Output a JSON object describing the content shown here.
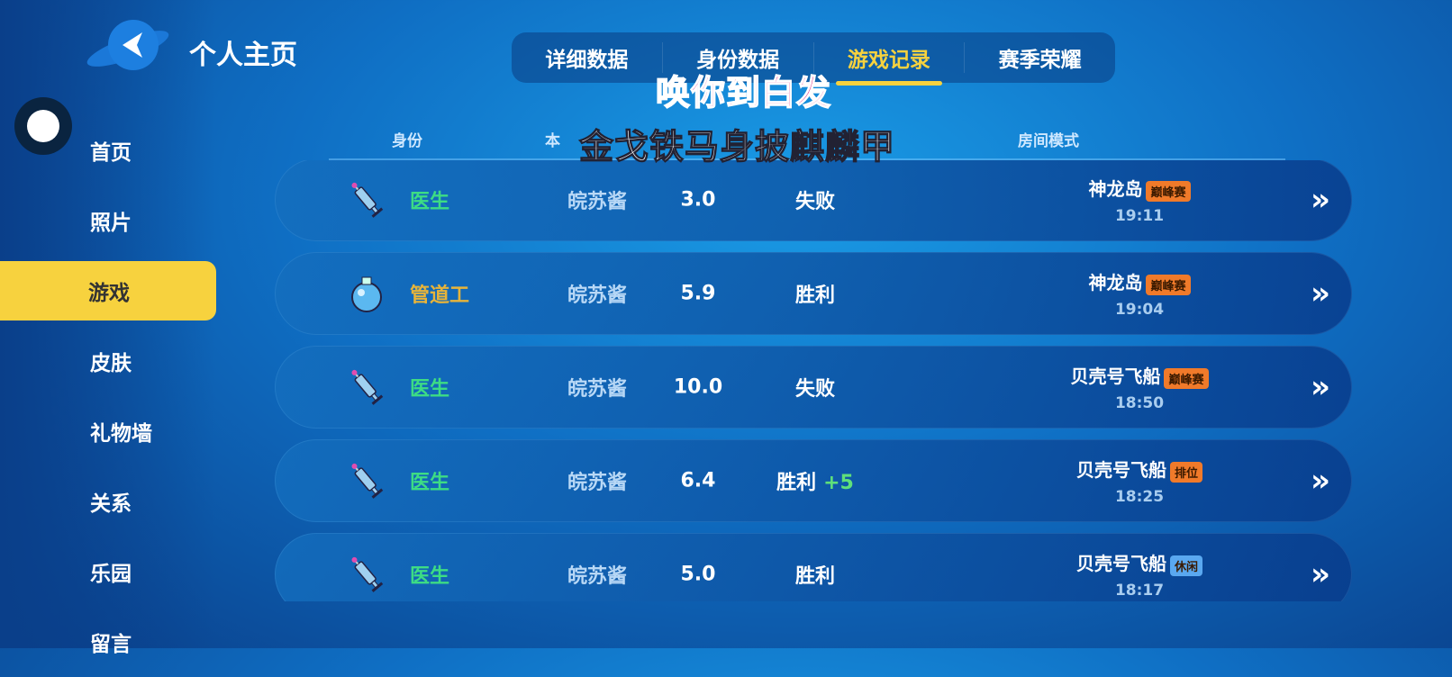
{
  "header": {
    "title": "个人主页",
    "back_icon": "planet-back-icon"
  },
  "sidebar": {
    "items": [
      {
        "label": "首页"
      },
      {
        "label": "照片"
      },
      {
        "label": "游戏",
        "active": true
      },
      {
        "label": "皮肤"
      },
      {
        "label": "礼物墙"
      },
      {
        "label": "关系"
      },
      {
        "label": "乐园"
      },
      {
        "label": "留言"
      }
    ]
  },
  "tabs": [
    {
      "label": "详细数据"
    },
    {
      "label": "身份数据"
    },
    {
      "label": "游戏记录",
      "active": true
    },
    {
      "label": "赛季荣耀"
    }
  ],
  "table": {
    "columns": [
      "身份",
      "本",
      "房间模式"
    ],
    "rows": [
      {
        "icon": "syringe-icon",
        "role": "医生",
        "role_color": "#3ddc84",
        "nick": "皖苏酱",
        "score": "3.0",
        "result": "失败",
        "delta": "",
        "map": "神龙岛",
        "badge": "巅峰赛",
        "badge_color": "#f07a2a",
        "time": "19:11"
      },
      {
        "icon": "bomb-icon",
        "role": "管道工",
        "role_color": "#e7b43a",
        "nick": "皖苏酱",
        "score": "5.9",
        "result": "胜利",
        "delta": "",
        "map": "神龙岛",
        "badge": "巅峰赛",
        "badge_color": "#f07a2a",
        "time": "19:04"
      },
      {
        "icon": "syringe-icon",
        "role": "医生",
        "role_color": "#3ddc84",
        "nick": "皖苏酱",
        "score": "10.0",
        "result": "失败",
        "delta": "",
        "map": "贝壳号飞船",
        "badge": "巅峰赛",
        "badge_color": "#f07a2a",
        "time": "18:50"
      },
      {
        "icon": "syringe-icon",
        "role": "医生",
        "role_color": "#3ddc84",
        "nick": "皖苏酱",
        "score": "6.4",
        "result": "胜利",
        "delta": "+5",
        "map": "贝壳号飞船",
        "badge": "排位",
        "badge_color": "#f07a2a",
        "time": "18:25"
      },
      {
        "icon": "syringe-icon",
        "role": "医生",
        "role_color": "#3ddc84",
        "nick": "皖苏酱",
        "score": "5.0",
        "result": "胜利",
        "delta": "",
        "map": "贝壳号飞船",
        "badge": "休闲",
        "badge_color": "#5aa8f0",
        "time": "18:17"
      }
    ]
  },
  "subtitles": {
    "line1": "唤你到白发",
    "line2": "金戈铁马身披麒麟甲"
  },
  "colors": {
    "accent": "#f7d23e",
    "win_delta": "#5fe07a"
  }
}
